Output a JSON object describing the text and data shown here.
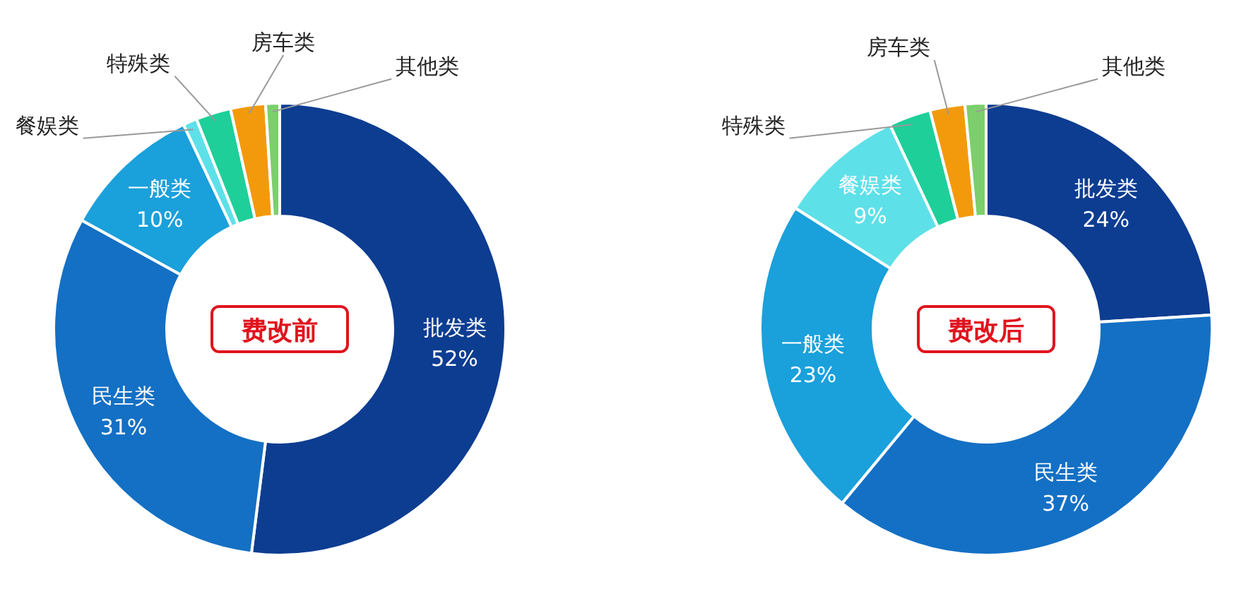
{
  "chart_data": [
    {
      "type": "donut",
      "title": "费改前",
      "categories": [
        "批发类",
        "民生类",
        "一般类",
        "餐娱类",
        "特殊类",
        "房车类",
        "其他类"
      ],
      "values": [
        52,
        31,
        10,
        1,
        2.5,
        2.5,
        1
      ],
      "value_labels": [
        "52%",
        "31%",
        "10%",
        null,
        null,
        null,
        null
      ],
      "colors": [
        "#0d3d91",
        "#1470c4",
        "#1aa0db",
        "#5ee0e8",
        "#1ecf9a",
        "#f39a0c",
        "#7ccf6c"
      ]
    },
    {
      "type": "donut",
      "title": "费改后",
      "categories": [
        "批发类",
        "民生类",
        "一般类",
        "餐娱类",
        "特殊类",
        "房车类",
        "其他类"
      ],
      "values": [
        24,
        37,
        23,
        9,
        3,
        2.5,
        1.5
      ],
      "value_labels": [
        "24%",
        "37%",
        "23%",
        "9%",
        null,
        null,
        null
      ],
      "colors": [
        "#0d3d91",
        "#1470c4",
        "#1aa0db",
        "#5ee0e8",
        "#1ecf9a",
        "#f39a0c",
        "#7ccf6c"
      ]
    }
  ]
}
